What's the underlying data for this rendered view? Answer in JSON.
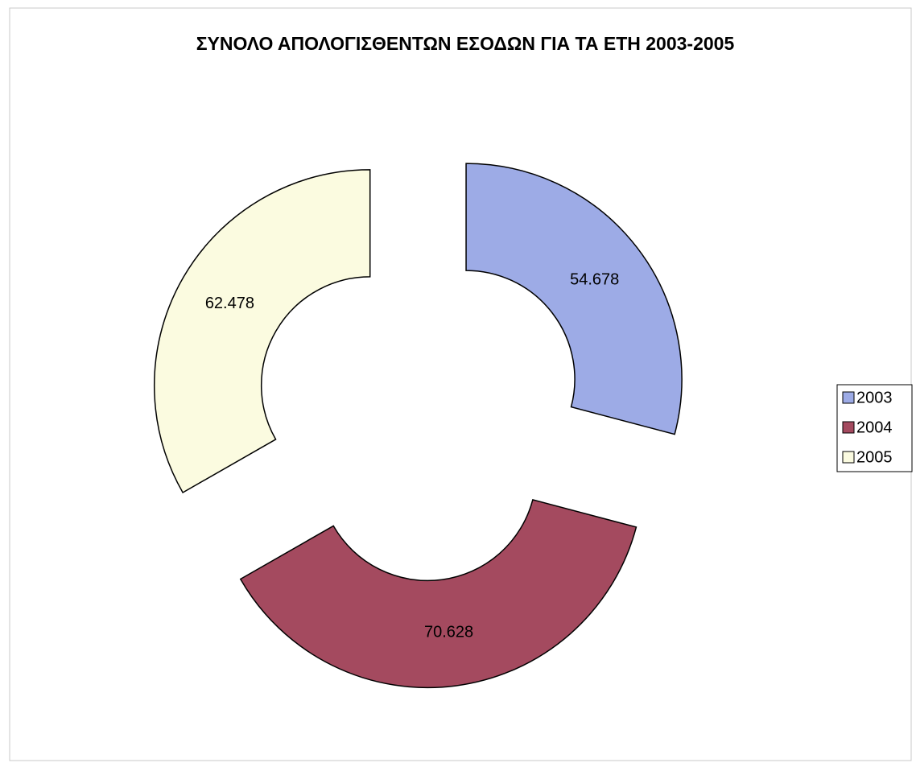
{
  "chart_data": {
    "type": "doughnut",
    "title": "ΣΥΝΟΛΟ ΑΠΟΛΟΓΙΣΘΕΝΤΩΝ ΕΣΟΔΩΝ ΓΙΑ ΤΑ ΕΤΗ 2003-2005",
    "categories": [
      "2003",
      "2004",
      "2005"
    ],
    "values": [
      54.678,
      70.628,
      62.478
    ],
    "colors": [
      "#9dabe6",
      "#a44a5f",
      "#fbfbe0"
    ],
    "legend": "right"
  }
}
